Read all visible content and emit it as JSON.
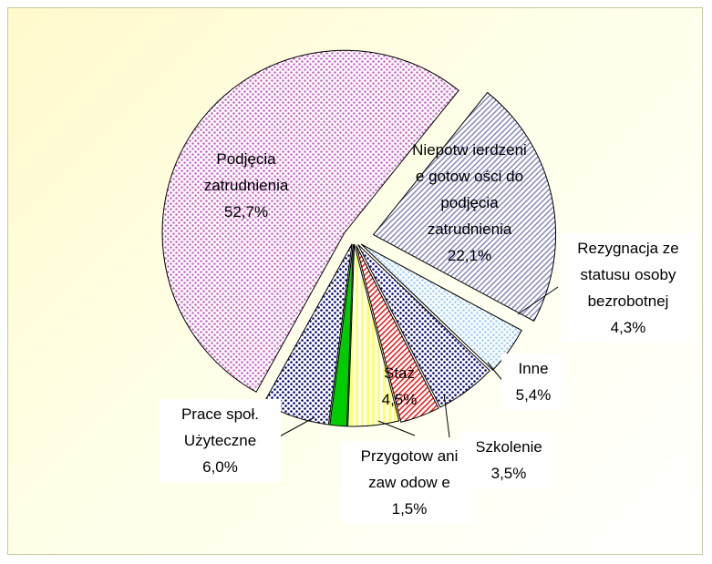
{
  "chart_data": {
    "type": "pie",
    "categories": [
      "Podjęcia\nzatrudnienia",
      "Niepotw ierdzeni\ne gotow ości do\npodjęcia\nzatrudnienia",
      "Rezygnacja ze\nstatusu osoby\nbezrobotnej",
      "Inne",
      "Szkolenie",
      "Staż",
      "Przygotow ani\nzaw odow e",
      "Prace społ.\nUżyteczne"
    ],
    "values": [
      52.7,
      22.1,
      4.3,
      5.4,
      3.5,
      4.5,
      1.5,
      6.0
    ],
    "value_labels": [
      "52,7%",
      "22,1%",
      "4,3%",
      "5,4%",
      "3,5%",
      "4,5%",
      "1,5%",
      "6,0%"
    ],
    "colors": [
      "#cc66cc",
      "#8080c0",
      "#99ccff",
      "#000080",
      "#ff0000",
      "#ffff66",
      "#00cc00",
      "#000080"
    ],
    "patterns": [
      "dots",
      "hatch",
      "dots",
      "dots",
      "hatch",
      "stripes",
      "solid",
      "dots"
    ]
  }
}
